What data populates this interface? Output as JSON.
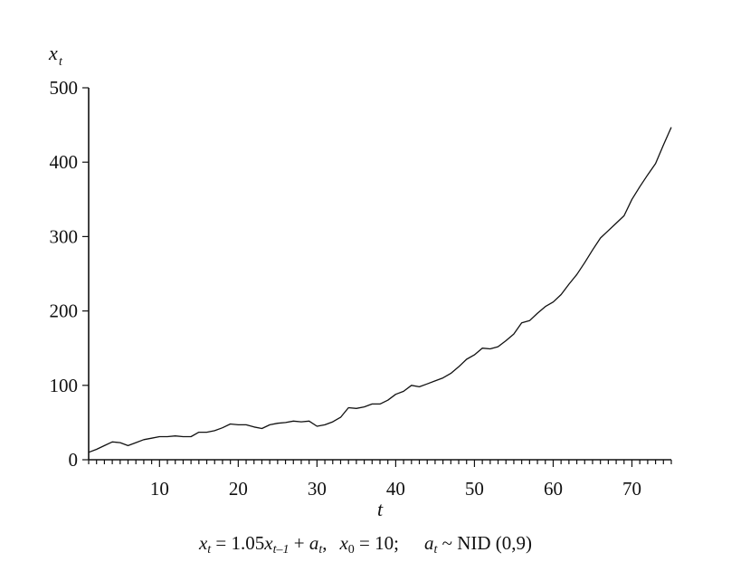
{
  "chart_data": {
    "type": "line",
    "title": "",
    "xlabel": "t",
    "ylabel": "x_t",
    "xlim": [
      1,
      75
    ],
    "ylim": [
      0,
      500
    ],
    "x_ticks": [
      10,
      20,
      30,
      40,
      50,
      60,
      70
    ],
    "y_ticks": [
      0,
      100,
      200,
      300,
      400,
      500
    ],
    "grid": false,
    "legend": "none",
    "series": [
      {
        "x": [
          1,
          2,
          3,
          4,
          5,
          6,
          7,
          8,
          9,
          10,
          11,
          12,
          13,
          14,
          15,
          16,
          17,
          18,
          19,
          20,
          21,
          22,
          23,
          24,
          25,
          26,
          27,
          28,
          29,
          30,
          31,
          32,
          33,
          34,
          35,
          36,
          37,
          38,
          39,
          40,
          41,
          42,
          43,
          44,
          45,
          46,
          47,
          48,
          49,
          50,
          51,
          52,
          53,
          54,
          55,
          56,
          57,
          58,
          59,
          60,
          61,
          62,
          63,
          64,
          65,
          66,
          67,
          68,
          69,
          70,
          71,
          72,
          73,
          74,
          75
        ],
        "values": [
          10,
          14,
          19,
          24,
          23,
          19,
          23,
          27,
          29,
          31,
          31,
          32,
          31,
          31,
          37,
          37,
          39,
          43,
          48,
          47,
          47,
          44,
          42,
          47,
          49,
          50,
          52,
          51,
          52,
          45,
          47,
          51,
          57,
          70,
          69,
          71,
          75,
          75,
          80,
          88,
          92,
          100,
          98,
          102,
          106,
          110,
          116,
          125,
          135,
          141,
          150,
          149,
          152,
          160,
          169,
          184,
          187,
          197,
          206,
          212,
          222,
          236,
          249,
          265,
          282,
          298,
          308,
          318,
          328,
          350,
          367,
          383,
          398,
          423,
          447
        ]
      }
    ],
    "annotations": {
      "equation": {
        "lhs_var": "x",
        "lhs_sub": "t",
        "eq_coeff": "= 1.05",
        "rhs_var": "x",
        "rhs_sub": "t–1",
        "plus": "+",
        "shock_var": "a",
        "shock_sub": "t",
        "sep": ",",
        "init_var": "x",
        "init_sub": "0",
        "init_val": "= 10;",
        "dist_var": "a",
        "dist_sub": "t",
        "dist": "~ NID (0,9)"
      }
    }
  }
}
